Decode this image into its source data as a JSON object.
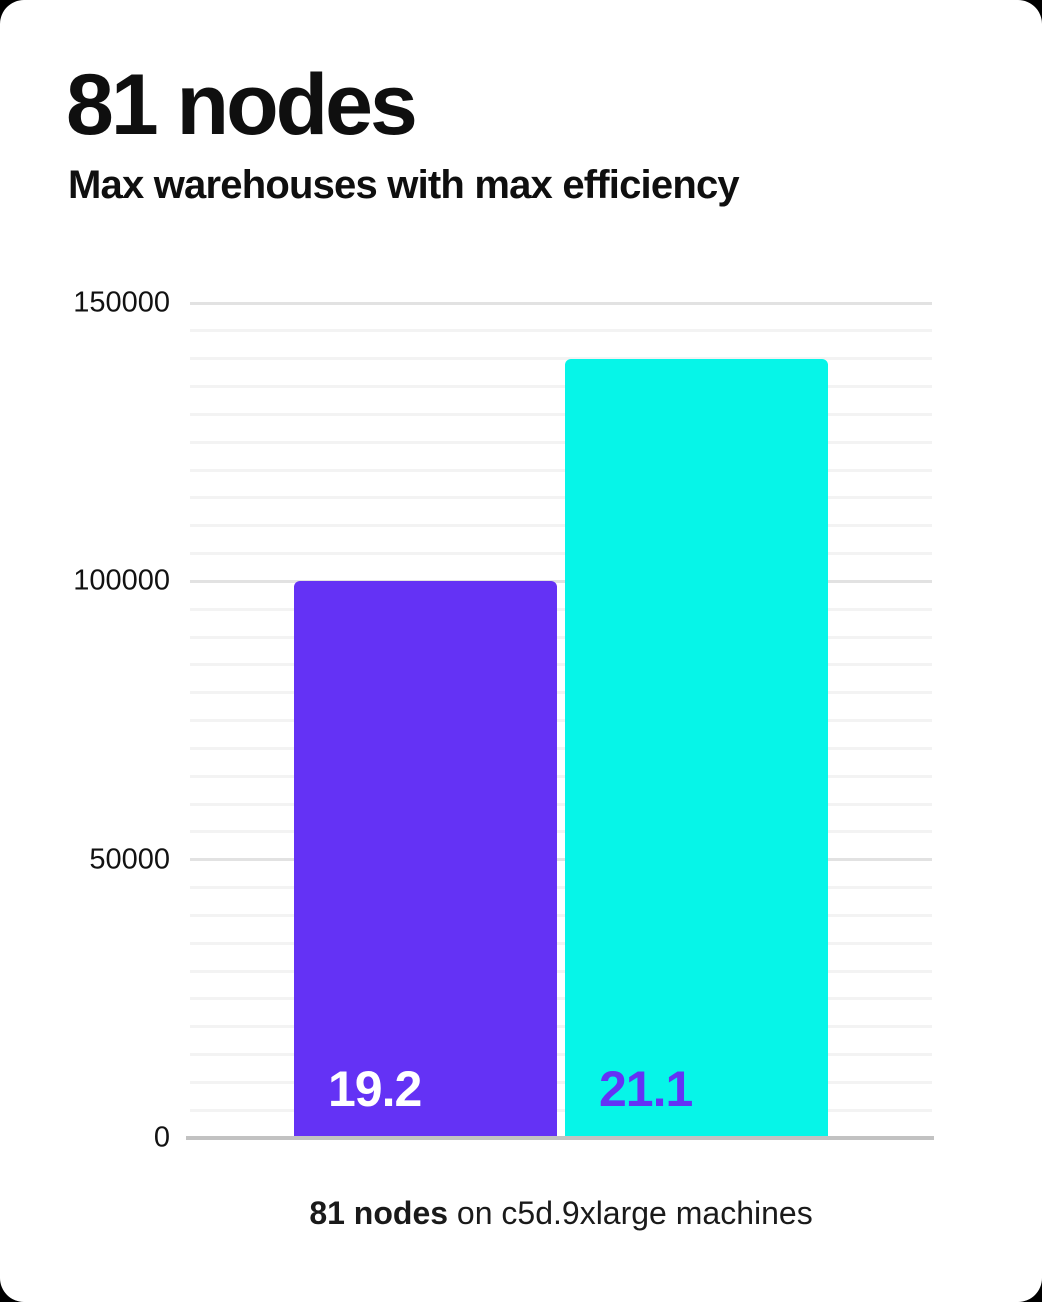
{
  "chart_data": {
    "type": "bar",
    "title": "81 nodes",
    "subtitle": "Max warehouses with max efficiency",
    "categories": [
      "19.2",
      "21.1"
    ],
    "series_label": "Max warehouses",
    "values": [
      100000,
      140000
    ],
    "bar_labels": [
      "19.2",
      "21.1"
    ],
    "bar_colors": [
      "#6432F5",
      "#06F5E8"
    ],
    "bar_label_colors": [
      "#FFFFFF",
      "#6432F5"
    ],
    "xlabel": "",
    "ylabel": "",
    "ylim": [
      0,
      150000
    ],
    "yticks": [
      0,
      50000,
      100000,
      150000
    ],
    "minor_grid_step": 5000,
    "grid": true,
    "legend": false,
    "caption": {
      "bold": "81 nodes",
      "rest": " on c5d.9xlarge machines"
    }
  },
  "style": {
    "minor_grid_color": "#f3f3f3",
    "major_grid_color": "#e2e2e2",
    "baseline_color": "#c2c2c2",
    "card_background": "#ffffff",
    "text_color": "#121212"
  }
}
